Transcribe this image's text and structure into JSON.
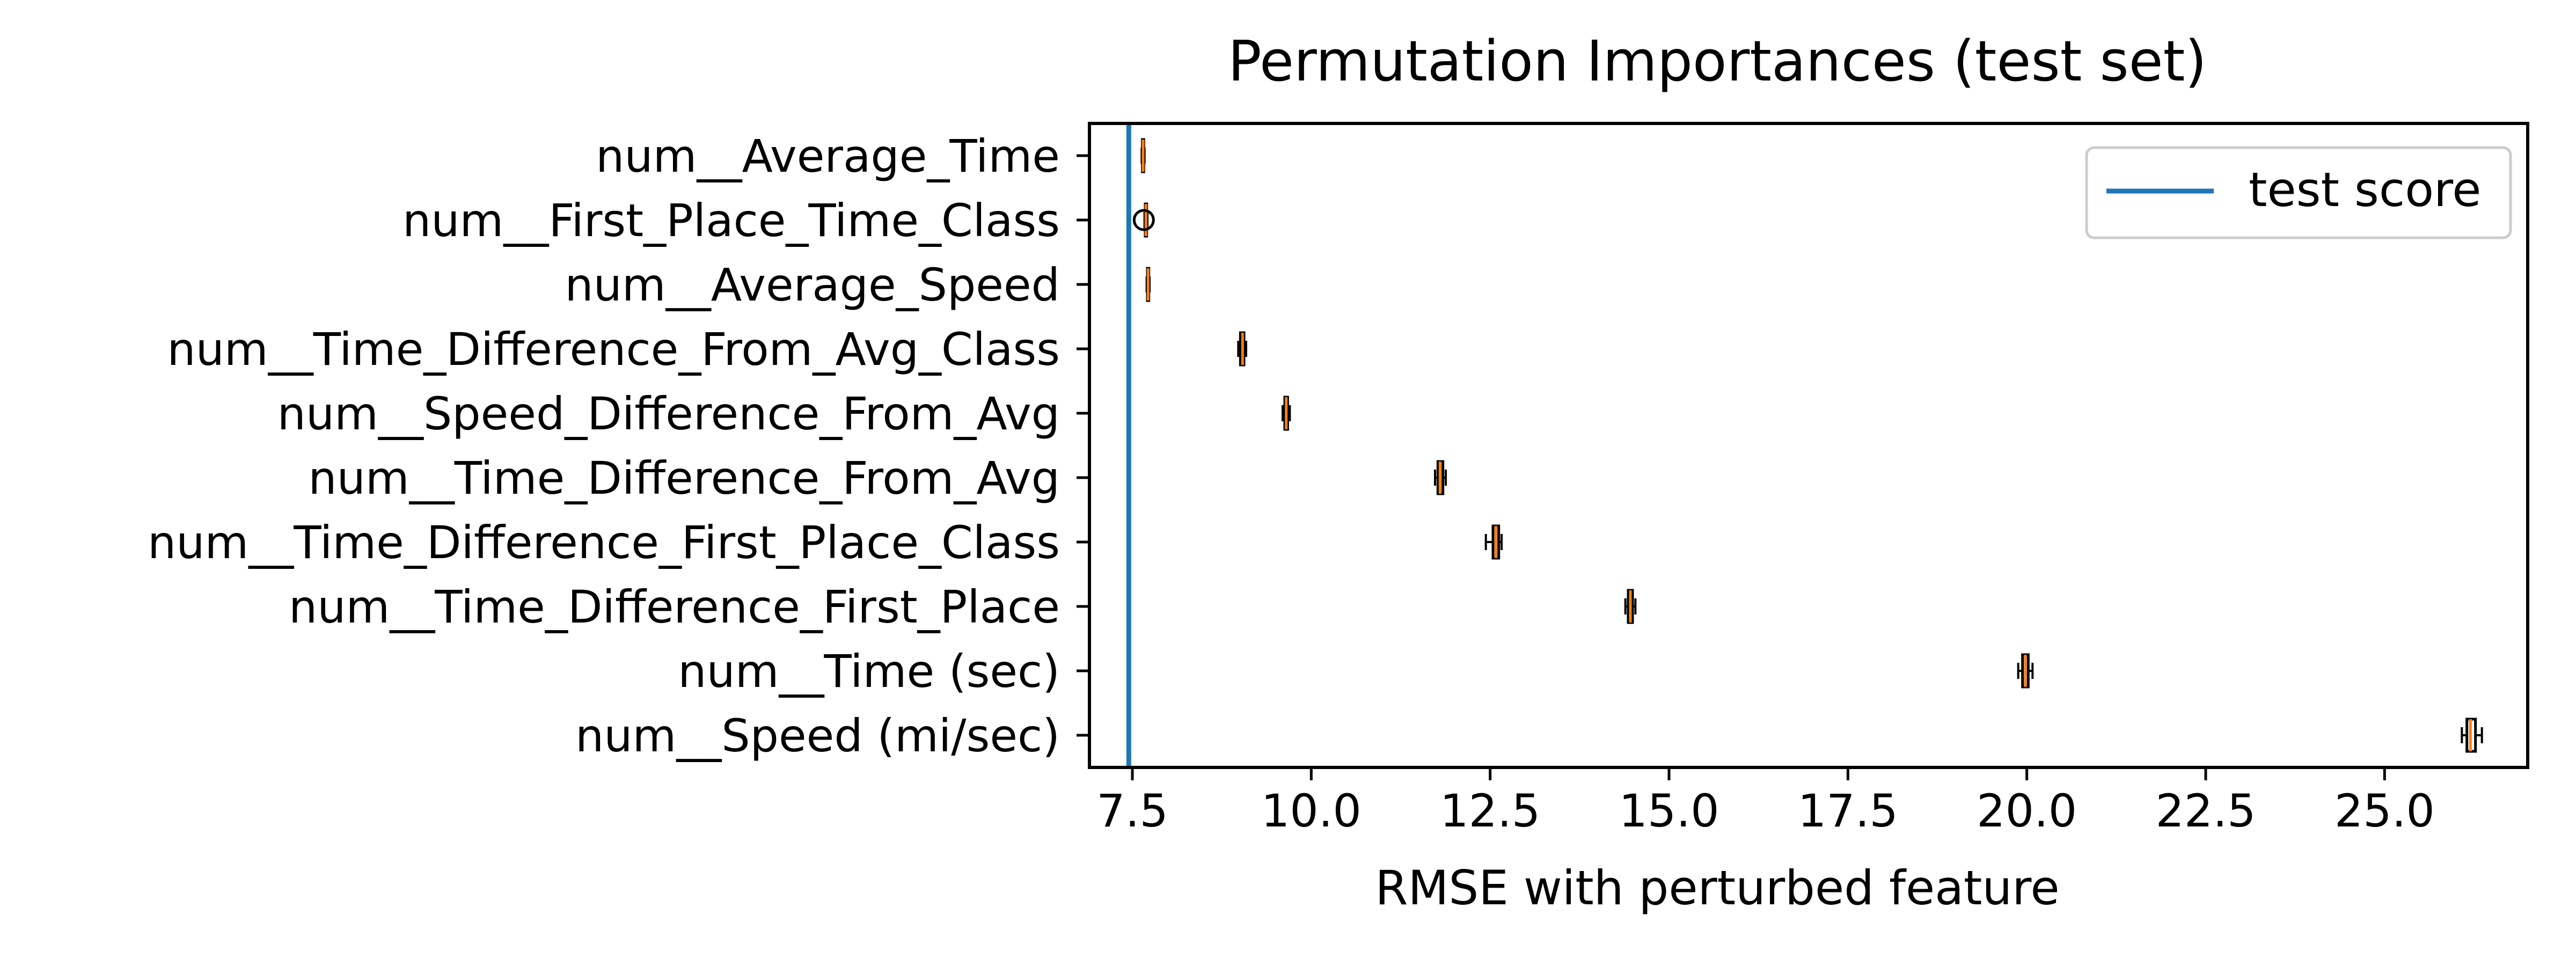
{
  "chart_data": {
    "type": "boxplot",
    "orientation": "horizontal",
    "title": "Permutation Importances (test set)",
    "xlabel": "RMSE with perturbed feature",
    "ylabel": "",
    "xlim": [
      6.9,
      27.0
    ],
    "xticks": [
      7.5,
      10.0,
      12.5,
      15.0,
      17.5,
      20.0,
      22.5,
      25.0
    ],
    "xtick_labels": [
      "7.5",
      "10.0",
      "12.5",
      "15.0",
      "17.5",
      "20.0",
      "22.5",
      "25.0"
    ],
    "grid": false,
    "legend": {
      "placement": "top-right",
      "entries": [
        "test score"
      ]
    },
    "reference_line": {
      "label": "test score",
      "x": 7.45,
      "color": "#1f77b4"
    },
    "box_color": "#000000",
    "median_color": "#ff7f0e",
    "categories": [
      "num__Average_Time",
      "num__First_Place_Time_Class",
      "num__Average_Speed",
      "num__Time_Difference_From_Avg_Class",
      "num__Speed_Difference_From_Avg",
      "num__Time_Difference_From_Avg",
      "num__Time_Difference_First_Place_Class",
      "num__Time_Difference_First_Place",
      "num__Time (sec)",
      "num__Speed (mi/sec)"
    ],
    "boxes": [
      {
        "min": 7.63,
        "q1": 7.64,
        "median": 7.65,
        "q3": 7.66,
        "max": 7.67,
        "outliers": []
      },
      {
        "min": 7.67,
        "q1": 7.68,
        "median": 7.69,
        "q3": 7.7,
        "max": 7.71,
        "outliers": [
          7.66
        ]
      },
      {
        "min": 7.7,
        "q1": 7.71,
        "median": 7.72,
        "q3": 7.73,
        "max": 7.74,
        "outliers": []
      },
      {
        "min": 8.98,
        "q1": 9.01,
        "median": 9.04,
        "q3": 9.06,
        "max": 9.09,
        "outliers": []
      },
      {
        "min": 9.6,
        "q1": 9.63,
        "median": 9.65,
        "q3": 9.67,
        "max": 9.7,
        "outliers": []
      },
      {
        "min": 11.73,
        "q1": 11.77,
        "median": 11.8,
        "q3": 11.84,
        "max": 11.88,
        "outliers": []
      },
      {
        "min": 12.44,
        "q1": 12.54,
        "median": 12.58,
        "q3": 12.62,
        "max": 12.66,
        "outliers": []
      },
      {
        "min": 14.39,
        "q1": 14.43,
        "median": 14.46,
        "q3": 14.49,
        "max": 14.53,
        "outliers": []
      },
      {
        "min": 19.88,
        "q1": 19.94,
        "median": 19.98,
        "q3": 20.02,
        "max": 20.08,
        "outliers": []
      },
      {
        "min": 26.08,
        "q1": 26.15,
        "median": 26.2,
        "q3": 26.27,
        "max": 26.36,
        "outliers": []
      }
    ]
  }
}
